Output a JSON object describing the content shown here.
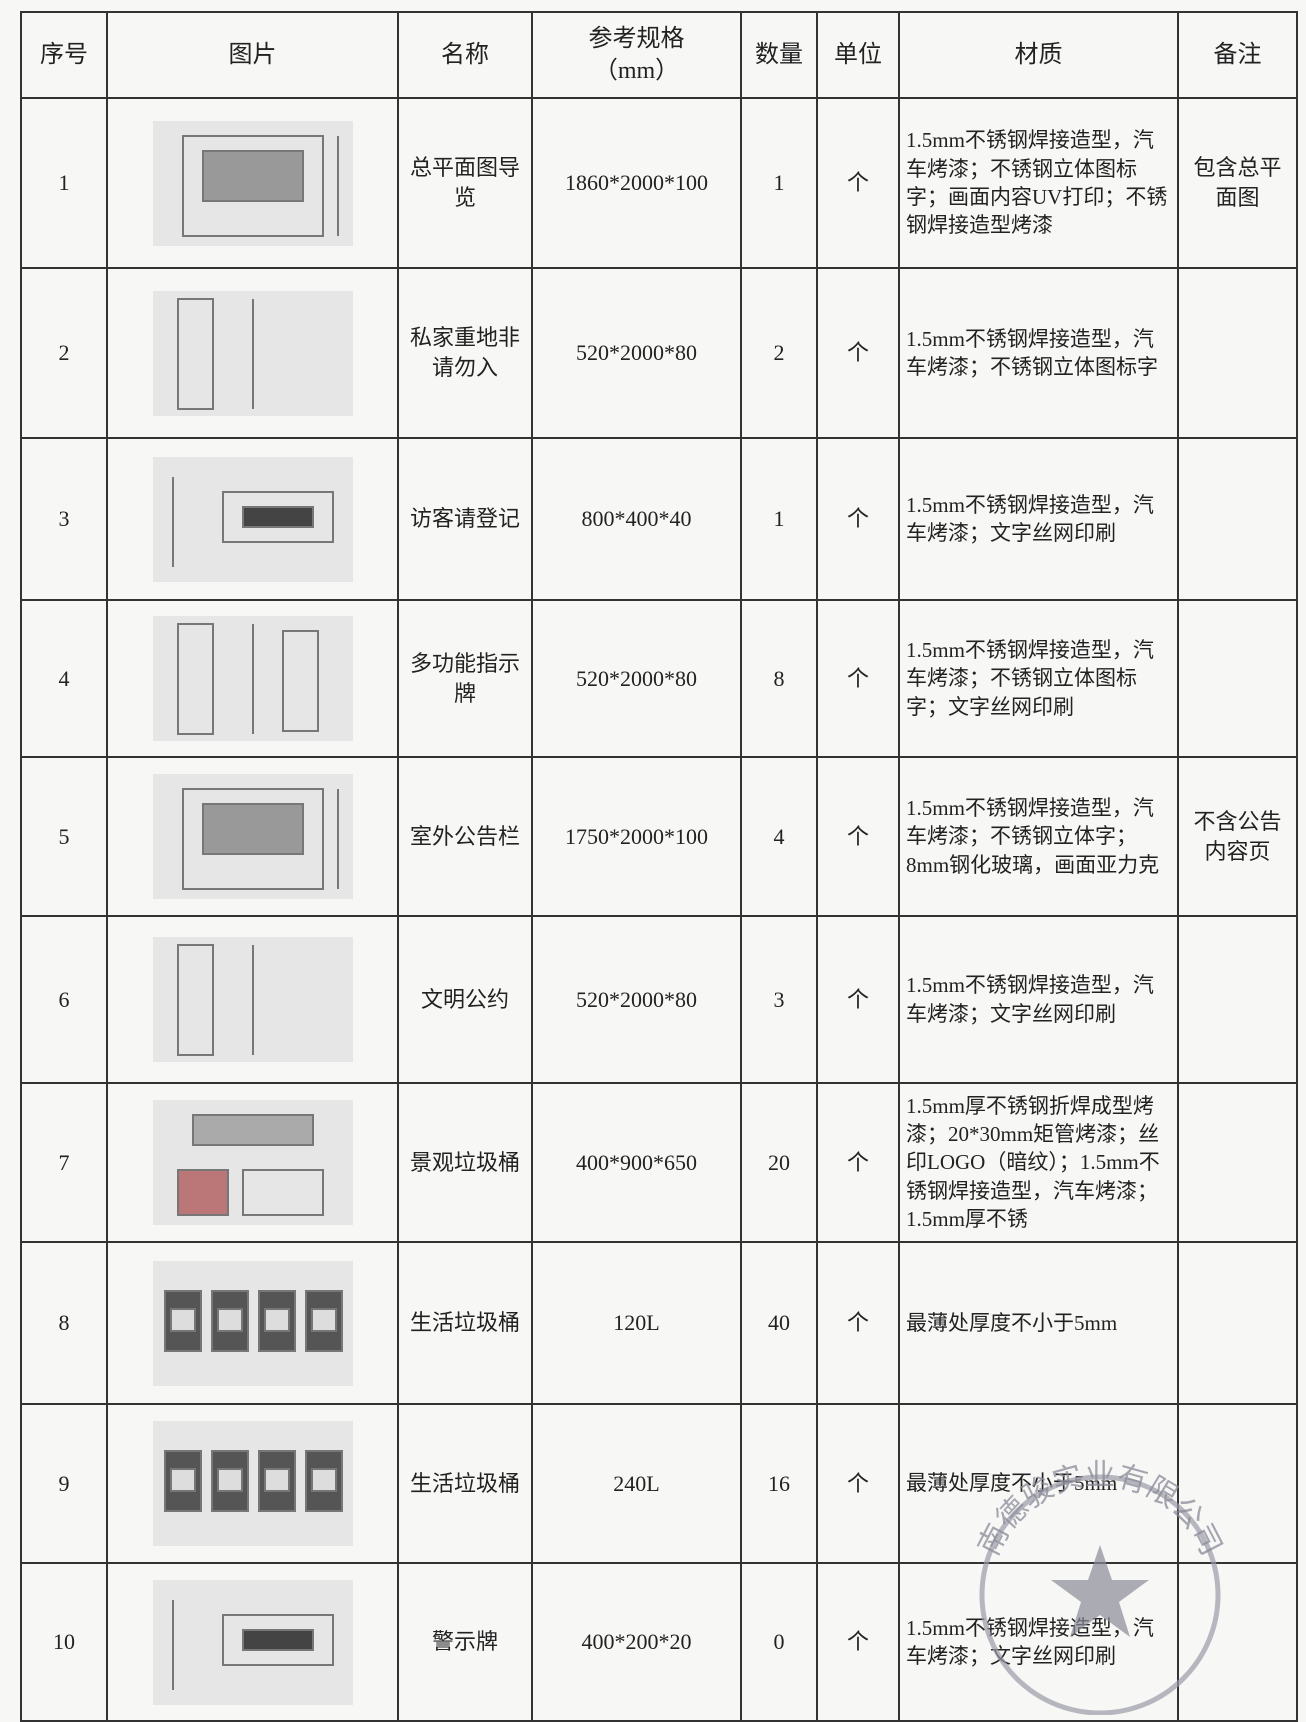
{
  "header": [
    "序号",
    "图片",
    "名称",
    "参考规格\n（mm）",
    "数量",
    "单位",
    "材质",
    "备注"
  ],
  "rows": [
    {
      "no": 1,
      "name": "总平面图导览",
      "spec": "1860*2000*100",
      "qty": 1,
      "unit": "个",
      "material": "1.5mm不锈钢焊接造型，汽车烤漆；不锈钢立体图标字；画面内容UV打印；不锈钢焊接造型烤漆",
      "note": "包含总平面图"
    },
    {
      "no": 2,
      "name": "私家重地非请勿入",
      "spec": "520*2000*80",
      "qty": 2,
      "unit": "个",
      "material": "1.5mm不锈钢焊接造型，汽车烤漆；不锈钢立体图标字",
      "note": null
    },
    {
      "no": 3,
      "name": "访客请登记",
      "spec": "800*400*40",
      "qty": 1,
      "unit": "个",
      "material": "1.5mm不锈钢焊接造型，汽车烤漆；文字丝网印刷",
      "note": null
    },
    {
      "no": 4,
      "name": "多功能指示牌",
      "spec": "520*2000*80",
      "qty": 8,
      "unit": "个",
      "material": "1.5mm不锈钢焊接造型，汽车烤漆；不锈钢立体图标字；文字丝网印刷",
      "note": null
    },
    {
      "no": 5,
      "name": "室外公告栏",
      "spec": "1750*2000*100",
      "qty": 4,
      "unit": "个",
      "material": "1.5mm不锈钢焊接造型，汽车烤漆；不锈钢立体字；8mm钢化玻璃，画面亚力克",
      "note": "不含公告内容页"
    },
    {
      "no": 6,
      "name": "文明公约",
      "spec": "520*2000*80",
      "qty": 3,
      "unit": "个",
      "material": "1.5mm不锈钢焊接造型，汽车烤漆；文字丝网印刷",
      "note": null
    },
    {
      "no": 7,
      "name": "景观垃圾桶",
      "spec": "400*900*650",
      "qty": 20,
      "unit": "个",
      "material": "1.5mm厚不锈钢折焊成型烤漆；20*30mm矩管烤漆；丝印LOGO（暗纹）；1.5mm不锈钢焊接造型，汽车烤漆；1.5mm厚不锈",
      "note": null
    },
    {
      "no": 8,
      "name": "生活垃圾桶",
      "spec": "120L",
      "qty": 40,
      "unit": "个",
      "material": "最薄处厚度不小于5mm",
      "note": null
    },
    {
      "no": 9,
      "name": "生活垃圾桶",
      "spec": "240L",
      "qty": 16,
      "unit": "个",
      "material": "最薄处厚度不小于5mm",
      "note": null
    },
    {
      "no": 10,
      "name": "警示牌",
      "spec": "400*200*20",
      "qty": 0,
      "unit": "个",
      "material": "1.5mm不锈钢焊接造型，汽车烤漆；文字丝网印刷",
      "note": null
    }
  ],
  "stamp": "南德骏实业有限公司"
}
